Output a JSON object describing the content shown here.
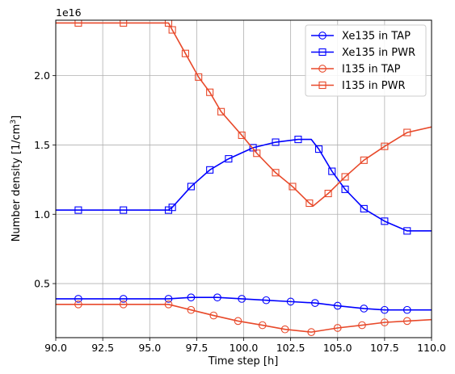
{
  "chart_data": {
    "type": "line",
    "xlabel": "Time step [h]",
    "ylabel_prefix": "Number density [1/cm",
    "ylabel_exp": "3",
    "ylabel_suffix": "]",
    "offset_text": "1e16",
    "xlim": [
      90.0,
      110.0
    ],
    "ylim": [
      0.11,
      2.4
    ],
    "x_ticks": [
      90.0,
      92.5,
      95.0,
      97.5,
      100.0,
      102.5,
      105.0,
      107.5,
      110.0
    ],
    "x_tick_labels": [
      "90.0",
      "92.5",
      "95.0",
      "97.5",
      "100.0",
      "102.5",
      "105.0",
      "107.5",
      "110.0"
    ],
    "y_ticks": [
      0.5,
      1.0,
      1.5,
      2.0
    ],
    "y_tick_labels": [
      "0.5",
      "1.0",
      "1.5",
      "2.0"
    ],
    "grid": true,
    "legend_position": "upper-right",
    "colors": {
      "blue": "#0000ff",
      "orange": "#e8492a"
    },
    "series": [
      {
        "name": "Xe135 in TAP",
        "color": "#0000ff",
        "marker": "circle",
        "x": [
          90.0,
          91.2,
          93.6,
          96.0,
          97.2,
          98.6,
          99.9,
          101.2,
          102.5,
          103.8,
          105.0,
          106.4,
          107.5,
          108.7,
          110.0
        ],
        "y": [
          0.39,
          0.39,
          0.39,
          0.39,
          0.4,
          0.4,
          0.39,
          0.38,
          0.37,
          0.36,
          0.34,
          0.32,
          0.31,
          0.31,
          0.31
        ]
      },
      {
        "name": "Xe135 in PWR",
        "color": "#0000ff",
        "marker": "square",
        "x": [
          90.0,
          91.2,
          93.6,
          96.0,
          96.2,
          97.2,
          98.2,
          99.2,
          100.5,
          101.7,
          102.9,
          103.6,
          104.0,
          104.7,
          105.4,
          106.4,
          107.5,
          108.7,
          110.0
        ],
        "y": [
          1.03,
          1.03,
          1.03,
          1.03,
          1.05,
          1.2,
          1.32,
          1.4,
          1.48,
          1.52,
          1.54,
          1.54,
          1.47,
          1.31,
          1.18,
          1.04,
          0.95,
          0.88,
          0.88
        ],
        "marker_indices": [
          1,
          2,
          3,
          4,
          5,
          6,
          7,
          8,
          9,
          10,
          12,
          13,
          14,
          15,
          16,
          17
        ]
      },
      {
        "name": "I135 in TAP",
        "color": "#e8492a",
        "marker": "circle",
        "x": [
          90.0,
          91.2,
          93.6,
          96.0,
          97.2,
          98.4,
          99.7,
          101.0,
          102.2,
          103.6,
          105.0,
          106.3,
          107.5,
          108.7,
          110.0
        ],
        "y": [
          0.35,
          0.35,
          0.35,
          0.35,
          0.31,
          0.27,
          0.23,
          0.2,
          0.17,
          0.15,
          0.18,
          0.2,
          0.22,
          0.23,
          0.24
        ]
      },
      {
        "name": "I135 in PWR",
        "color": "#e8492a",
        "marker": "square",
        "x": [
          90.0,
          91.2,
          93.6,
          96.0,
          96.2,
          96.9,
          97.6,
          98.2,
          98.8,
          99.9,
          100.7,
          101.7,
          102.6,
          103.5,
          103.7,
          104.5,
          105.4,
          106.4,
          107.5,
          108.7,
          110.0
        ],
        "y": [
          2.38,
          2.38,
          2.38,
          2.38,
          2.33,
          2.16,
          1.99,
          1.88,
          1.74,
          1.57,
          1.44,
          1.3,
          1.2,
          1.08,
          1.06,
          1.15,
          1.27,
          1.39,
          1.49,
          1.59,
          1.63
        ],
        "marker_indices": [
          1,
          2,
          3,
          4,
          5,
          6,
          7,
          8,
          9,
          10,
          11,
          12,
          13,
          15,
          16,
          17,
          18,
          19
        ]
      }
    ]
  }
}
